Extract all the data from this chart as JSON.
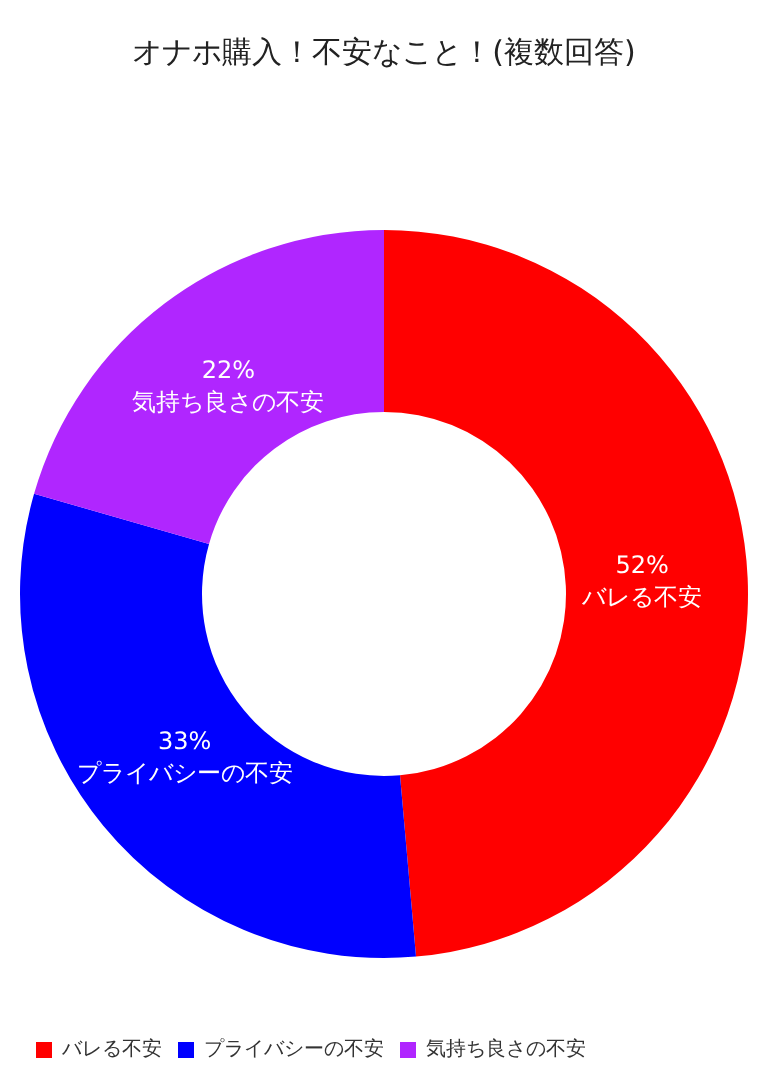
{
  "chart_data": {
    "type": "donut",
    "title": "オナホ購入！不安なこと！(複数回答)",
    "categories": [
      "バレる不安",
      "プライバシーの不安",
      "気持ち良さの不安"
    ],
    "values": [
      52,
      33,
      22
    ],
    "value_labels": [
      "52%",
      "33%",
      "22%"
    ],
    "colors": [
      "#ff0000",
      "#0000ff",
      "#b026ff"
    ],
    "legend": "bottom left"
  }
}
